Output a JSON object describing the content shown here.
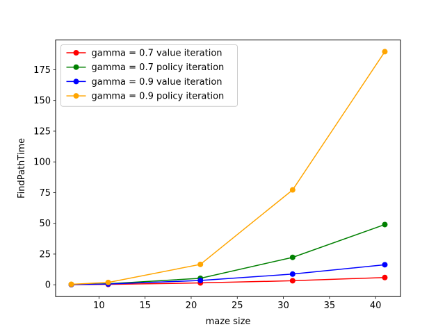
{
  "chart_data": {
    "type": "line",
    "xlabel": "maze size",
    "ylabel": "FindPathTime",
    "x": [
      7,
      11,
      21,
      31,
      41
    ],
    "xlim": [
      5.3,
      42.7
    ],
    "ylim": [
      -9.6,
      199.2
    ],
    "xticks": [
      10,
      15,
      20,
      25,
      30,
      35,
      40
    ],
    "yticks": [
      0,
      25,
      50,
      75,
      100,
      125,
      150,
      175
    ],
    "grid": false,
    "legend_position": "upper-left",
    "series": [
      {
        "name": "gamma = 0.7 value iteration",
        "color": "#ff0000",
        "values": [
          0.1,
          0.3,
          1.5,
          3.3,
          5.9
        ]
      },
      {
        "name": "gamma = 0.7 policy iteration",
        "color": "#008000",
        "values": [
          0.2,
          0.8,
          5.3,
          22.3,
          49.0
        ]
      },
      {
        "name": "gamma = 0.9 value iteration",
        "color": "#0000ff",
        "values": [
          0.1,
          0.6,
          3.5,
          8.7,
          16.3
        ]
      },
      {
        "name": "gamma = 0.9 policy iteration",
        "color": "#ffa500",
        "values": [
          0.4,
          1.9,
          16.6,
          77.2,
          189.7
        ]
      }
    ]
  }
}
